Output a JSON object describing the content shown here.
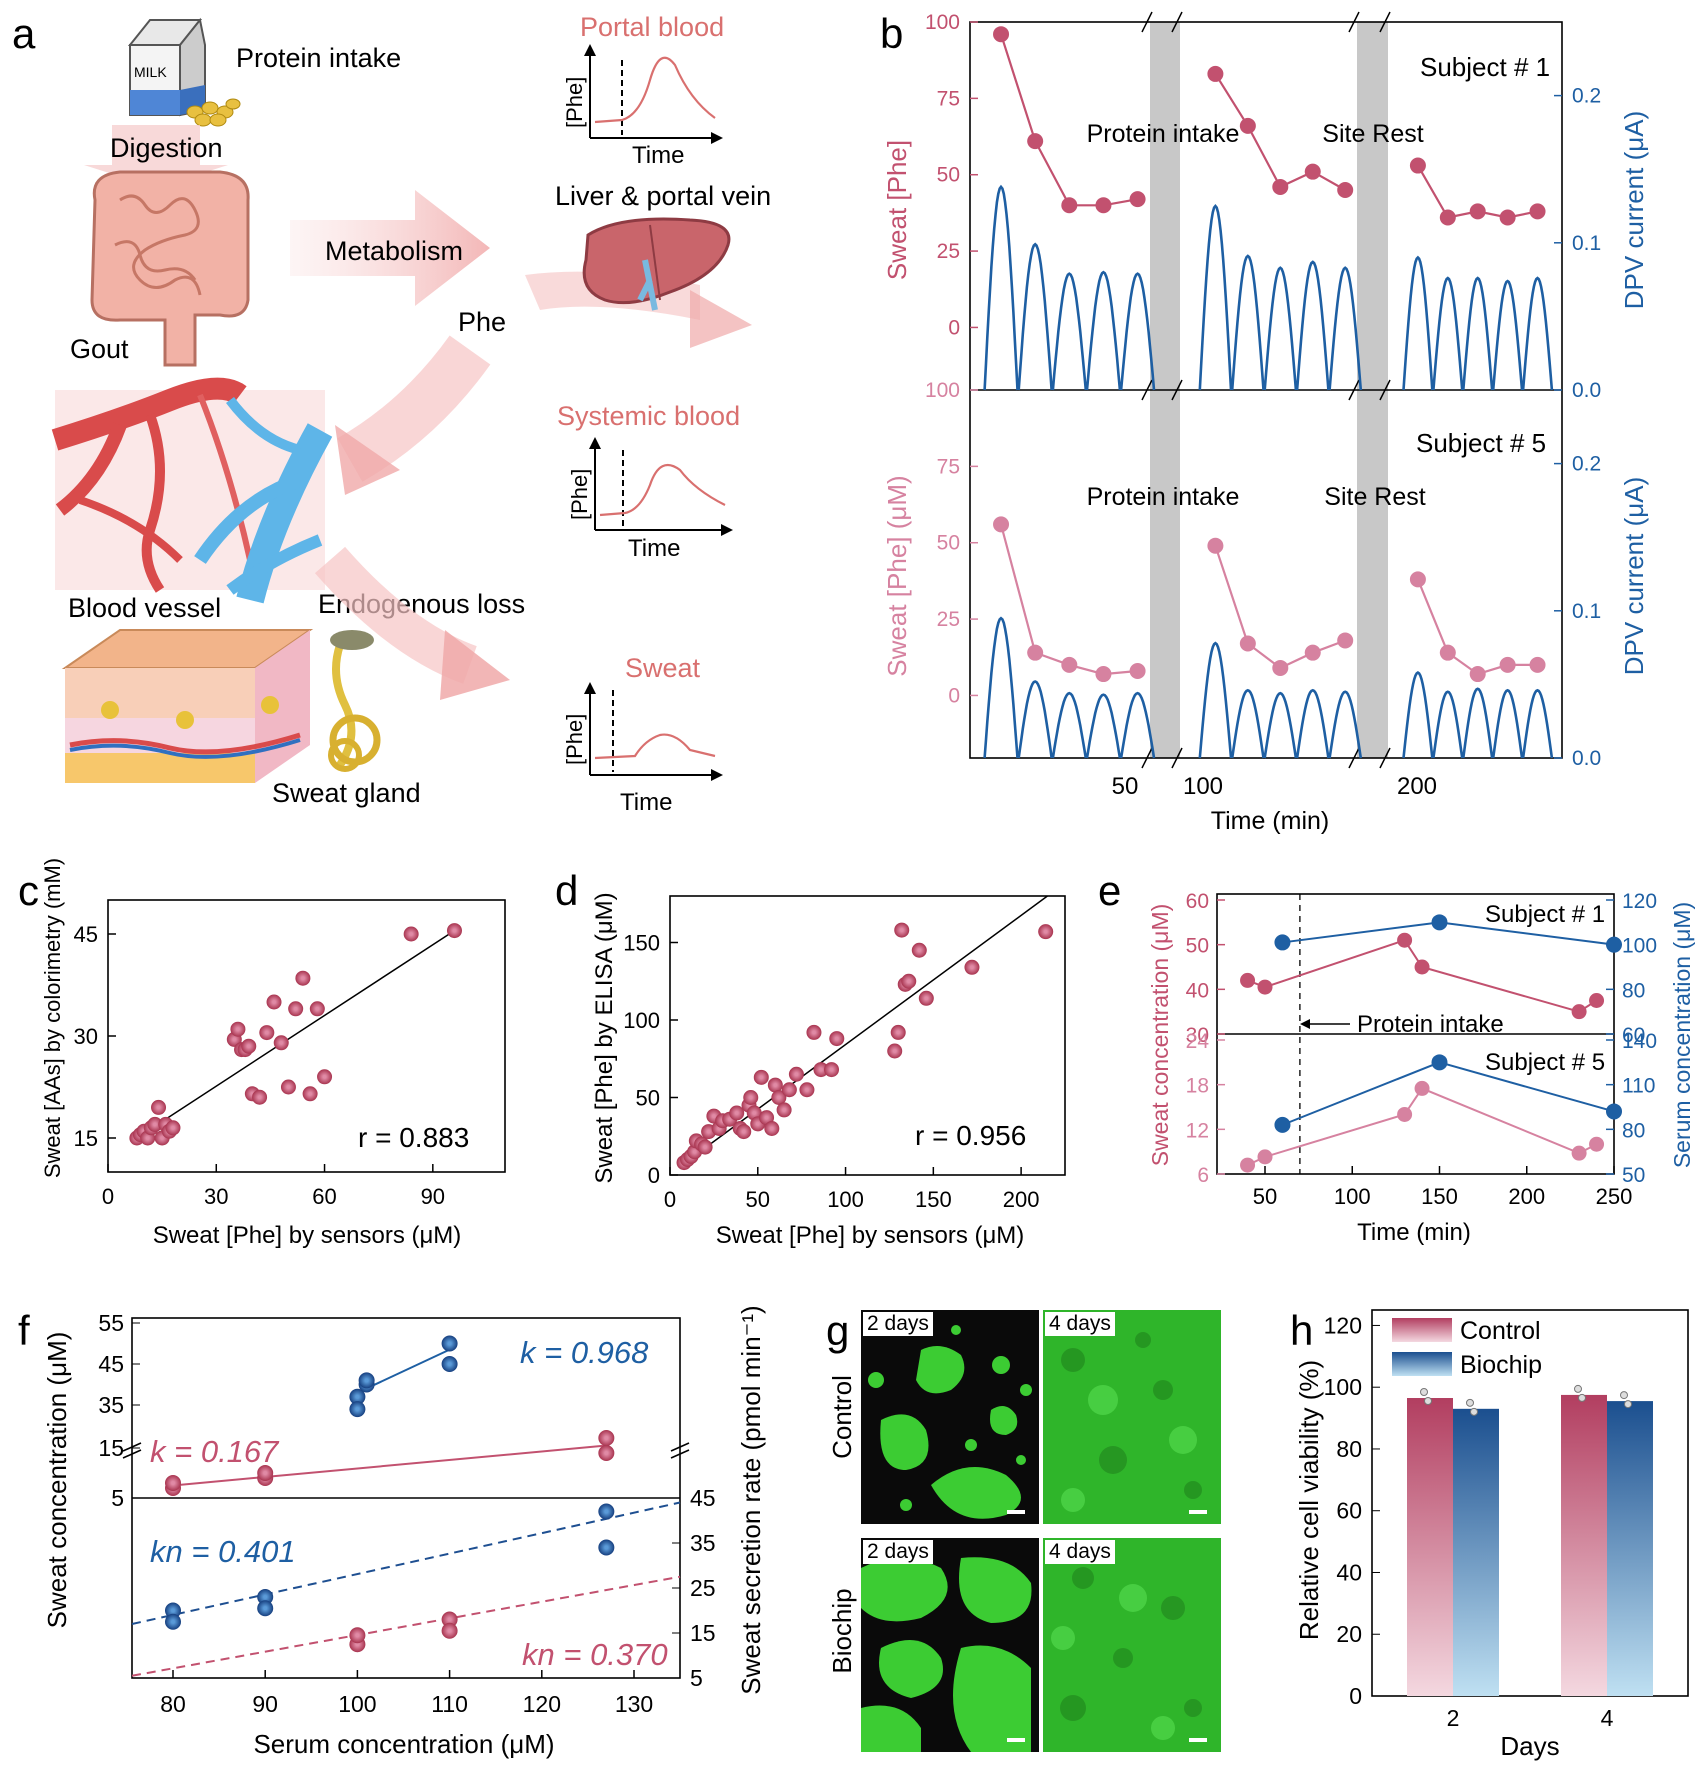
{
  "panel_letters": {
    "a": "a",
    "b": "b",
    "c": "c",
    "d": "d",
    "e": "e",
    "f": "f",
    "g": "g",
    "h": "h"
  },
  "panel_a": {
    "protein_intake": "Protein intake",
    "milk": "MILK",
    "digestion": "Digestion",
    "gout": "Gout",
    "metabolism": "Metabolism",
    "phe": "Phe",
    "liver": "Liver & portal vein",
    "blood_vessel": "Blood vessel",
    "endogenous_loss": "Endogenous loss",
    "sweat_gland": "Sweat gland",
    "portal_blood": "Portal blood",
    "systemic_blood": "Systemic blood",
    "sweat": "Sweat",
    "axis_y": "[Phe]",
    "axis_x": "Time"
  },
  "colors": {
    "pink": "#c2516f",
    "lightpink": "#d682a0",
    "blue": "#1e5fa3",
    "darkblue": "#1e4f91",
    "gray": "#c8c8c8",
    "green": "#3ccc33"
  },
  "chart_data": [
    {
      "panel": "b",
      "type": "line",
      "x_label": "Time (min)",
      "x_ticks": [
        "50",
        "100",
        "200"
      ],
      "break_labels": [
        "Protein intake",
        "Site Rest"
      ],
      "subplots": [
        {
          "subject": "Subject # 1",
          "ylabel_left": "Sweat [Phe]",
          "ylabel_right": "DPV current (μA)",
          "y_left_ticks": [
            "100",
            "75",
            "50",
            "25",
            "0"
          ],
          "y_right_ticks": [
            "0.2",
            "0.1",
            "0.0"
          ],
          "series": [
            {
              "x": [
                10,
                21,
                32,
                43,
                54
              ],
              "y": [
                96,
                61,
                40,
                40,
                42
              ]
            },
            {
              "x": [
                74,
                85,
                96,
                107,
                118
              ],
              "y": [
                83,
                66,
                46,
                51,
                45
              ]
            },
            {
              "x": [
                137,
                148,
                159,
                170,
                181
              ],
              "y": [
                53,
                36,
                38,
                36,
                38
              ]
            }
          ],
          "peaks": [
            0.138,
            0.099,
            0.079,
            0.08,
            0.079,
            0.125,
            0.091,
            0.083,
            0.087,
            0.083,
            0.09,
            0.076,
            0.076,
            0.074,
            0.076
          ]
        },
        {
          "subject": "Subject # 5",
          "ylabel_left": "Sweat [Phe] (μM)",
          "ylabel_right": "DPV current (μA)",
          "y_left_ticks": [
            "100",
            "75",
            "50",
            "25",
            "0"
          ],
          "y_right_ticks": [
            "0.2",
            "0.1",
            "0.0"
          ],
          "series": [
            {
              "x": [
                10,
                21,
                32,
                43,
                54
              ],
              "y": [
                56,
                14,
                10,
                7,
                8
              ]
            },
            {
              "x": [
                74,
                85,
                96,
                107,
                118
              ],
              "y": [
                49,
                17,
                9,
                14,
                18
              ]
            },
            {
              "x": [
                137,
                148,
                159,
                170,
                181
              ],
              "y": [
                38,
                14,
                7,
                10,
                10
              ]
            }
          ],
          "peaks": [
            0.095,
            0.052,
            0.044,
            0.043,
            0.044,
            0.078,
            0.046,
            0.044,
            0.046,
            0.045,
            0.058,
            0.045,
            0.047,
            0.046,
            0.046
          ]
        }
      ]
    },
    {
      "panel": "c",
      "type": "scatter",
      "xlabel": "Sweat [Phe] by sensors (μM)",
      "ylabel": "Sweat [AAs] by colorimetry (mM)",
      "xlim": [
        0,
        110
      ],
      "ylim": [
        10,
        50
      ],
      "x_ticks": [
        0,
        30,
        60,
        90
      ],
      "y_ticks": [
        15,
        30,
        45
      ],
      "annotation": "r = 0.883",
      "points": [
        [
          8,
          15
        ],
        [
          9,
          15.5
        ],
        [
          10,
          16
        ],
        [
          11,
          15
        ],
        [
          12,
          16.5
        ],
        [
          13,
          17
        ],
        [
          14,
          19.5
        ],
        [
          15,
          15
        ],
        [
          16,
          17
        ],
        [
          17,
          16
        ],
        [
          18,
          16.5
        ],
        [
          35,
          29.5
        ],
        [
          36,
          31
        ],
        [
          37,
          28
        ],
        [
          38,
          28
        ],
        [
          39,
          28.5
        ],
        [
          40,
          21.5
        ],
        [
          42,
          21
        ],
        [
          44,
          30.5
        ],
        [
          46,
          35
        ],
        [
          48,
          29
        ],
        [
          50,
          22.5
        ],
        [
          52,
          34
        ],
        [
          54,
          38.5
        ],
        [
          56,
          21.5
        ],
        [
          58,
          34
        ],
        [
          60,
          24
        ],
        [
          84,
          45
        ],
        [
          96,
          45.5
        ]
      ],
      "fit": [
        [
          8,
          15
        ],
        [
          96,
          45.5
        ]
      ]
    },
    {
      "panel": "d",
      "type": "scatter",
      "xlabel": "Sweat [Phe] by sensors (μM)",
      "ylabel": "Sweat [Phe] by ELISA (μM)",
      "xlim": [
        0,
        225
      ],
      "ylim": [
        0,
        180
      ],
      "x_ticks": [
        0,
        50,
        100,
        150,
        200
      ],
      "y_ticks": [
        0,
        50,
        100,
        150
      ],
      "annotation": "r = 0.956",
      "points": [
        [
          8,
          8
        ],
        [
          10,
          10
        ],
        [
          12,
          12
        ],
        [
          14,
          15
        ],
        [
          15,
          22
        ],
        [
          18,
          20
        ],
        [
          20,
          18
        ],
        [
          22,
          28
        ],
        [
          25,
          38
        ],
        [
          28,
          30
        ],
        [
          30,
          35
        ],
        [
          34,
          36
        ],
        [
          38,
          40
        ],
        [
          40,
          30
        ],
        [
          42,
          28
        ],
        [
          45,
          45
        ],
        [
          46,
          50
        ],
        [
          48,
          40
        ],
        [
          50,
          33
        ],
        [
          52,
          63
        ],
        [
          55,
          37
        ],
        [
          58,
          30
        ],
        [
          60,
          58
        ],
        [
          62,
          50
        ],
        [
          65,
          42
        ],
        [
          68,
          55
        ],
        [
          72,
          65
        ],
        [
          78,
          55
        ],
        [
          82,
          92
        ],
        [
          86,
          68
        ],
        [
          92,
          68
        ],
        [
          95,
          88
        ],
        [
          128,
          80
        ],
        [
          130,
          92
        ],
        [
          132,
          158
        ],
        [
          134,
          123
        ],
        [
          136,
          125
        ],
        [
          142,
          145
        ],
        [
          146,
          114
        ],
        [
          172,
          134
        ],
        [
          214,
          157
        ]
      ],
      "fit": [
        [
          5,
          5
        ],
        [
          215,
          180
        ]
      ]
    },
    {
      "panel": "e",
      "type": "line",
      "xlabel": "Time (min)",
      "ylabel_left": "Sweat concentration (μM)",
      "ylabel_right": "Serum concentration (μM)",
      "x_ticks": [
        50,
        100,
        150,
        200,
        250
      ],
      "annotation": "Protein intake",
      "intake_x": 70,
      "subplots": [
        {
          "subject": "Subject # 1",
          "y_left": [
            30,
            60
          ],
          "y_left_ticks": [
            30,
            40,
            50,
            60
          ],
          "y_right": [
            60,
            120
          ],
          "y_right_ticks": [
            60,
            80,
            100,
            120
          ],
          "sweat": {
            "x": [
              40,
              50,
              130,
              140,
              230,
              240
            ],
            "y": [
              42,
              40.5,
              51,
              45,
              35,
              37.5
            ]
          },
          "serum": {
            "x": [
              60,
              150,
              250
            ],
            "y": [
              101,
              110,
              100
            ]
          }
        },
        {
          "subject": "Subject # 5",
          "y_left": [
            6,
            24
          ],
          "y_left_ticks": [
            6,
            12,
            18,
            24
          ],
          "y_right": [
            50,
            140
          ],
          "y_right_ticks": [
            50,
            80,
            110,
            140
          ],
          "sweat": {
            "x": [
              40,
              50,
              130,
              140,
              230,
              240
            ],
            "y": [
              7.2,
              8.3,
              14,
              17.5,
              8.8,
              10
            ]
          },
          "serum": {
            "x": [
              60,
              150,
              250
            ],
            "y": [
              83,
              125,
              92
            ]
          }
        }
      ]
    },
    {
      "panel": "f",
      "type": "scatter",
      "xlabel": "Serum concentration (μM)",
      "ylabel_left": "Sweat concentration (μM)",
      "ylabel_right": "Sweat secretion rate (pmol min⁻¹)",
      "x_ticks": [
        80,
        90,
        100,
        110,
        120,
        130
      ],
      "top": {
        "y_ticks_upper": [
          35,
          45,
          55
        ],
        "y_ticks_lower": [
          5,
          15
        ],
        "blue": {
          "label": "k = 0.968",
          "points": [
            [
              100,
              37
            ],
            [
              100,
              34
            ],
            [
              101,
              40
            ],
            [
              101,
              41
            ],
            [
              110,
              50
            ],
            [
              110,
              45
            ]
          ]
        },
        "pink": {
          "label": "k = 0.167",
          "points": [
            [
              80,
              7
            ],
            [
              80,
              8
            ],
            [
              90,
              9
            ],
            [
              90,
              10
            ],
            [
              127,
              17
            ],
            [
              127,
              14
            ]
          ]
        }
      },
      "bottom": {
        "y_ticks": [
          5,
          15,
          25,
          35,
          45
        ],
        "blue": {
          "label": "kn = 0.401",
          "points": [
            [
              80,
              20
            ],
            [
              80,
              17.5
            ],
            [
              90,
              23
            ],
            [
              90,
              20.5
            ],
            [
              127,
              42
            ],
            [
              127,
              34
            ]
          ]
        },
        "pink": {
          "label": "kn = 0.370",
          "points": [
            [
              100,
              12.5
            ],
            [
              100,
              14.5
            ],
            [
              110,
              18
            ],
            [
              110,
              15.5
            ]
          ]
        }
      }
    },
    {
      "panel": "h",
      "type": "bar",
      "xlabel": "Days",
      "ylabel": "Relative cell viability (%)",
      "categories": [
        "2",
        "4"
      ],
      "ylim": [
        0,
        125
      ],
      "y_ticks": [
        0,
        20,
        40,
        60,
        80,
        100,
        120
      ],
      "series": [
        {
          "name": "Control",
          "values": [
            96.5,
            97.5
          ]
        },
        {
          "name": "Biochip",
          "values": [
            93,
            95.5
          ]
        }
      ]
    }
  ],
  "panel_g": {
    "row_labels": [
      "Control",
      "Biochip"
    ],
    "tiles": [
      "2 days",
      "4 days",
      "2 days",
      "4 days"
    ]
  }
}
